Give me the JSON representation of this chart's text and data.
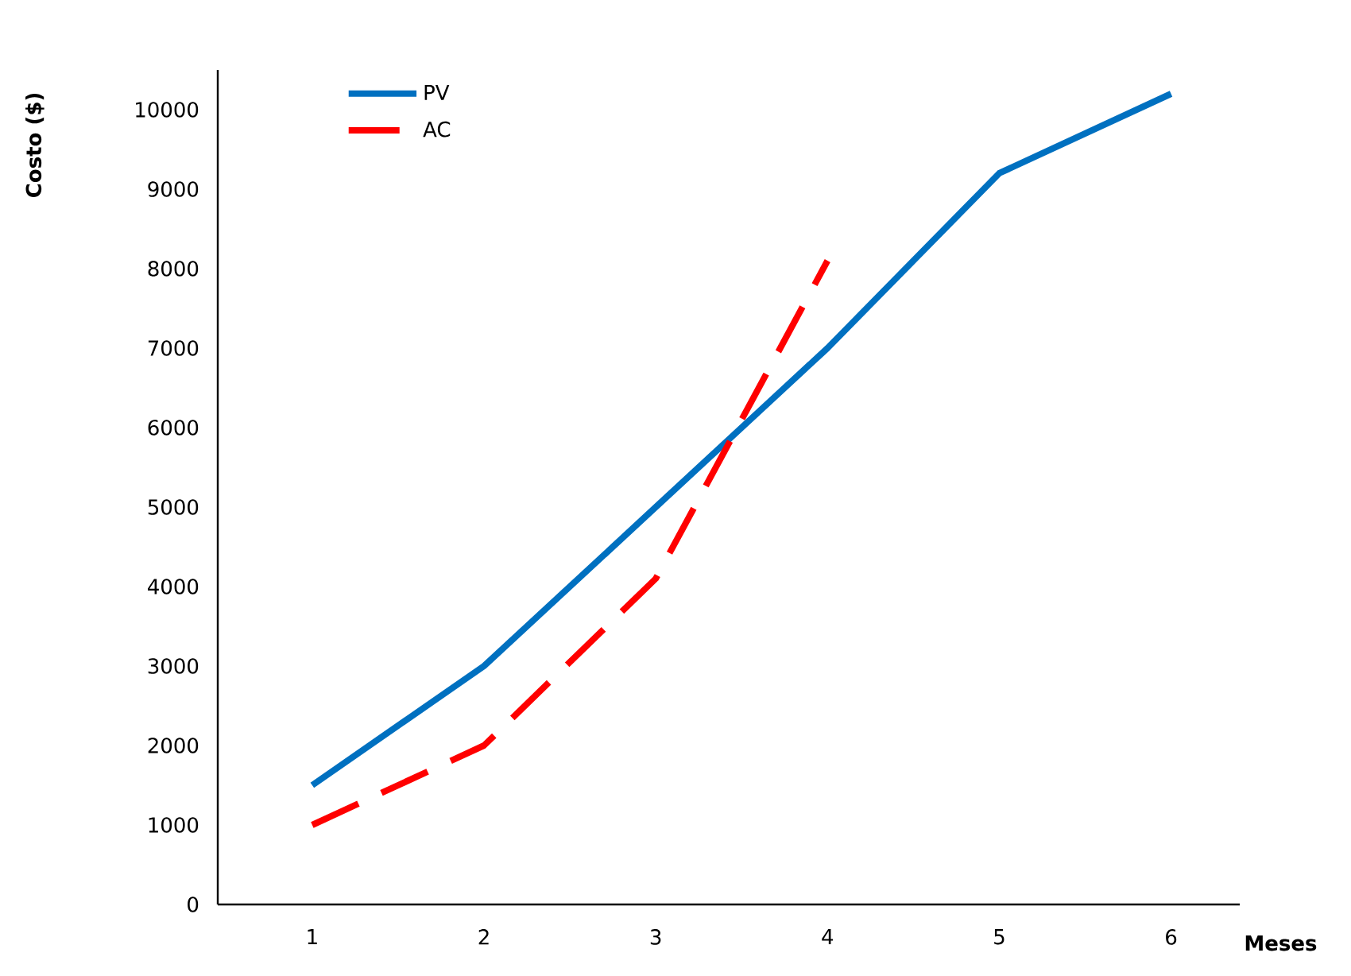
{
  "chart_data": {
    "type": "line",
    "xlabel": "Meses",
    "ylabel": "Costo ($)",
    "categories": [
      "1",
      "2",
      "3",
      "4",
      "5",
      "6"
    ],
    "series": [
      {
        "name": "PV",
        "color": "#0070c0",
        "values": [
          1500,
          3000,
          5000,
          7000,
          9200,
          10200
        ],
        "line_style": "solid"
      },
      {
        "name": "AC",
        "color": "#ff0000",
        "values": [
          1000,
          2000,
          4100,
          8100,
          null,
          null
        ],
        "line_style": "dashed"
      }
    ],
    "ylim": [
      0,
      10500
    ],
    "yticks": [
      0,
      1000,
      2000,
      3000,
      4000,
      5000,
      6000,
      7000,
      8000,
      9000,
      10000
    ],
    "grid": false,
    "legend": "top left",
    "marker": "none"
  }
}
